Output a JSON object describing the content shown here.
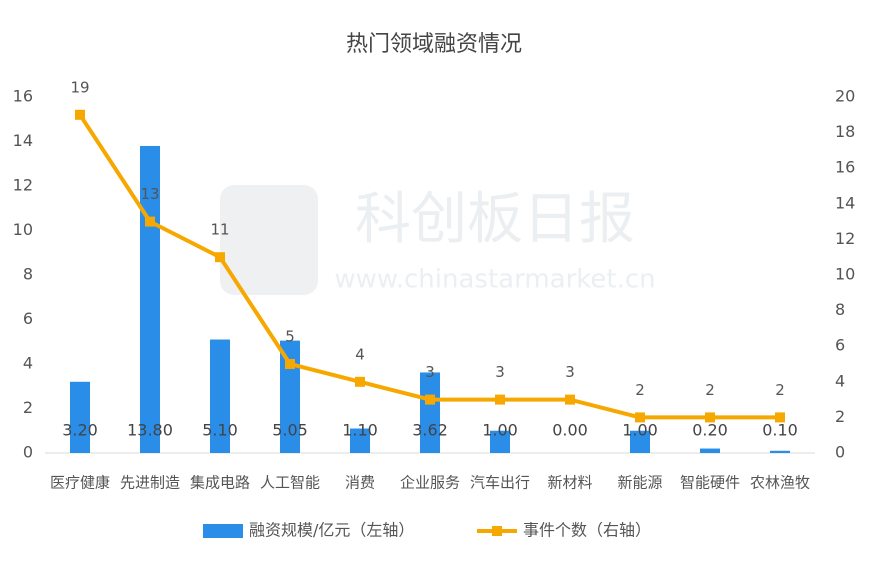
{
  "chart_data": {
    "type": "bar-line",
    "title": "热门领域融资情况",
    "watermark": [
      "科创板日报",
      "www.chinastarmarket.cn"
    ],
    "categories": [
      "医疗健康",
      "先进制造",
      "集成电路",
      "人工智能",
      "消费",
      "企业服务",
      "汽车出行",
      "新材料",
      "新能源",
      "智能硬件",
      "农林渔牧"
    ],
    "series": [
      {
        "name": "融资规模/亿元（左轴）",
        "type": "bar",
        "color": "#2a8de8",
        "values": [
          3.2,
          13.8,
          5.1,
          5.05,
          1.1,
          3.62,
          1.0,
          0.0,
          1.0,
          0.2,
          0.1
        ],
        "value_labels": [
          "3.20",
          "13.80",
          "5.10",
          "5.05",
          "1.10",
          "3.62",
          "1.00",
          "0.00",
          "1.00",
          "0.20",
          "0.10"
        ]
      },
      {
        "name": "事件个数（右轴）",
        "type": "line",
        "axis": "y2",
        "color": "#f7a800",
        "values": [
          19,
          13,
          11,
          5,
          4,
          3,
          3,
          3,
          2,
          2,
          2
        ]
      }
    ],
    "ylim": [
      0,
      16
    ],
    "yticks": [
      0,
      2,
      4,
      6,
      8,
      10,
      12,
      14,
      16
    ],
    "y2lim": [
      0,
      20
    ],
    "y2ticks": [
      0,
      2,
      4,
      6,
      8,
      10,
      12,
      14,
      16,
      18,
      20
    ],
    "legend": "bottom"
  }
}
